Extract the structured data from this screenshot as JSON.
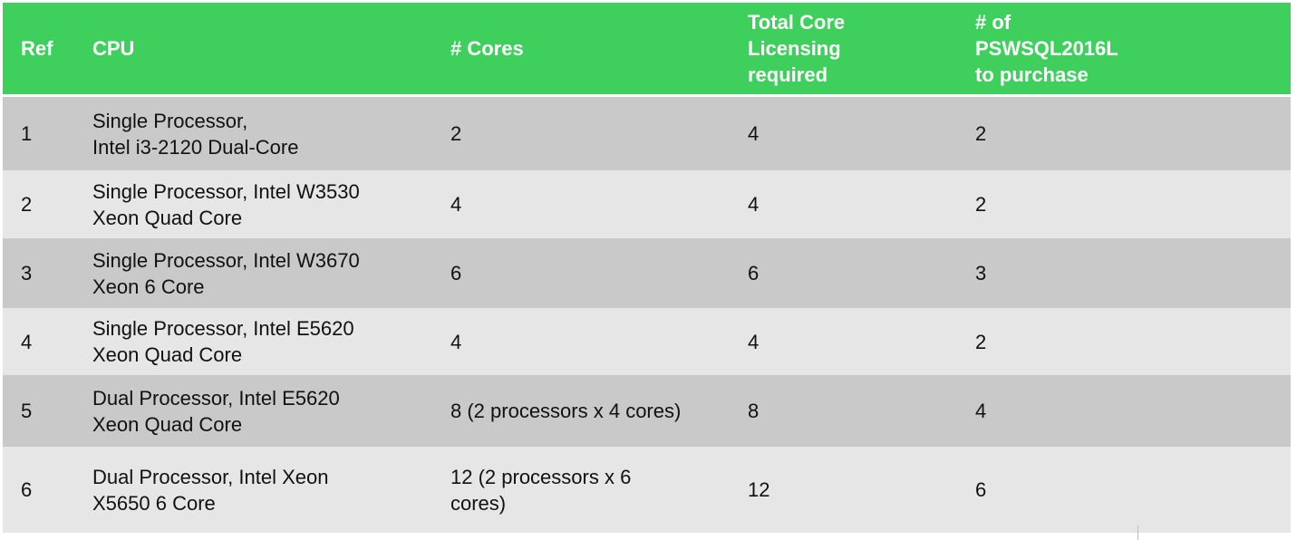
{
  "table": {
    "headers": [
      "Ref",
      "CPU",
      "# Cores",
      "Total Core\nLicensing\nrequired",
      "# of\nPSWSQL2016L\nto purchase"
    ],
    "rows": [
      [
        1,
        "Single Processor,\nIntel i3-2120 Dual-Core",
        2,
        4,
        2
      ],
      [
        2,
        "Single Processor, Intel W3530\nXeon Quad Core",
        4,
        4,
        2
      ],
      [
        3,
        "Single Processor, Intel W3670\nXeon 6 Core",
        6,
        6,
        3
      ],
      [
        4,
        "Single Processor, Intel E5620\nXeon Quad Core",
        4,
        4,
        2
      ],
      [
        5,
        "Dual Processor, Intel E5620\nXeon Quad Core",
        "8 (2 processors x 4 cores)",
        8,
        4
      ],
      [
        6,
        "Dual Processor, Intel Xeon\nX5650 6 Core",
        "12 (2 processors x 6\ncores)",
        12,
        6
      ]
    ]
  }
}
